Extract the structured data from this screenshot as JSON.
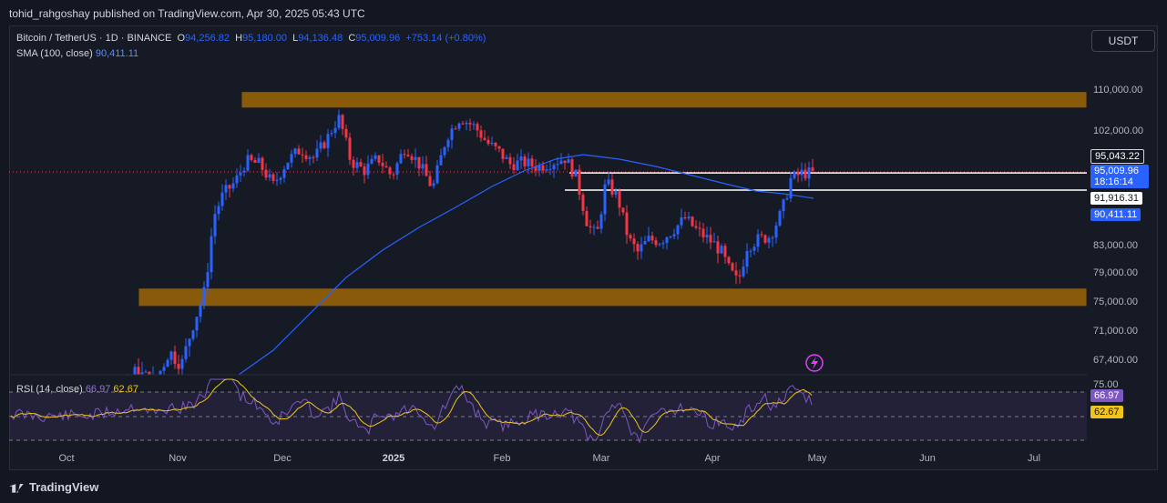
{
  "header": {
    "published": "tohid_rahgoshay published on TradingView.com, Apr 30, 2025 05:43 UTC"
  },
  "footer": {
    "brand": "TradingView"
  },
  "legend": {
    "symbol": "Bitcoin / TetherUS · 1D · BINANCE",
    "o_label": "O",
    "o": "94,256.82",
    "h_label": "H",
    "h": "95,180.00",
    "l_label": "L",
    "l": "94,136.48",
    "c_label": "C",
    "c": "95,009.96",
    "change": "+753.14 (+0.80%)",
    "sma_label": "SMA (100, close)",
    "sma": "90,411.11",
    "rsi_label": "RSI (14, close)",
    "rsi": "66.97",
    "rsi_ma": "62.67"
  },
  "currency_button": "USDT",
  "colors": {
    "up": "#2962ff",
    "down": "#f23645",
    "zone": "#8a5a0b",
    "sma": "#2962ff",
    "rsi": "#7e57c2",
    "rsi_ma": "#f0c419"
  },
  "chart_data": {
    "type": "candlestick",
    "symbol": "BTCUSDT",
    "timeframe": "1D",
    "y_ticks": [
      "110,000.00",
      "102,000.00",
      "83,000.00",
      "79,000.00",
      "75,000.00",
      "71,000.00",
      "67,400.00"
    ],
    "x_ticks": [
      "Oct",
      "Nov",
      "Dec",
      "2025",
      "Feb",
      "Mar",
      "Apr",
      "May",
      "Jun",
      "Jul"
    ],
    "price_labels": {
      "current": "95,043.22",
      "close": "95,009.96",
      "countdown": "18:16:14",
      "support_line": "91,916.31",
      "sma": "90,411.11"
    },
    "zones": [
      {
        "name": "resistance",
        "from": 106500,
        "to": 109700
      },
      {
        "name": "support",
        "from": 74400,
        "to": 76900
      }
    ],
    "horizontal_lines": [
      95043.22,
      91916.31
    ],
    "rsi_panel": {
      "top_label": "75.00",
      "rsi_value": "66.97",
      "rsi_ma_value": "62.67",
      "levels": [
        70,
        50,
        30
      ]
    }
  }
}
